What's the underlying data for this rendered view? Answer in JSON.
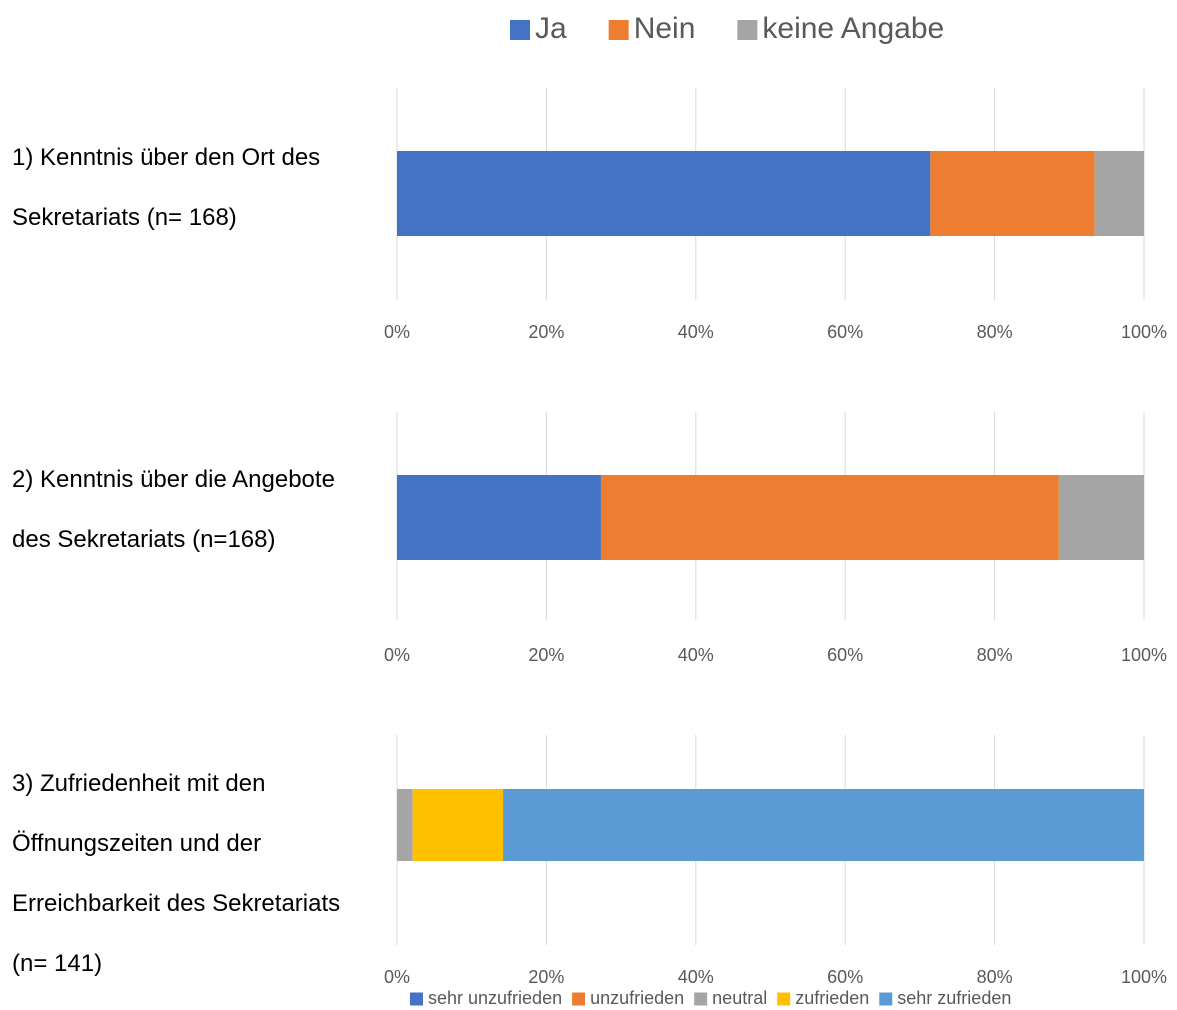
{
  "chart_data": [
    {
      "type": "bar",
      "stacked": true,
      "orientation": "horizontal",
      "categories": [
        "1) Kenntnis über den Ort des Sekretariats (n= 168)",
        "2) Kenntnis über die Angebote des Sekretariats (n=168)"
      ],
      "series": [
        {
          "name": "Ja",
          "color": "#4472c4",
          "values": [
            71.4,
            27.3
          ]
        },
        {
          "name": "Nein",
          "color": "#ed7d31",
          "values": [
            22.0,
            61.3
          ]
        },
        {
          "name": "keine Angabe",
          "color": "#a5a5a5",
          "values": [
            6.6,
            11.4
          ]
        }
      ],
      "xlim": [
        0,
        100
      ],
      "xticks": [
        {
          "value": 0,
          "label": "0%"
        },
        {
          "value": 20,
          "label": "20%"
        },
        {
          "value": 40,
          "label": "40%"
        },
        {
          "value": 60,
          "label": "60%"
        },
        {
          "value": 80,
          "label": "80%"
        },
        {
          "value": 100,
          "label": "100%"
        }
      ],
      "grid": true,
      "legend": "top"
    },
    {
      "type": "bar",
      "stacked": true,
      "orientation": "horizontal",
      "categories": [
        "3) Zufriedenheit mit den Öffnungszeiten und der Erreichbarkeit des Sekretariats (n= 141)"
      ],
      "series": [
        {
          "name": "sehr unzufrieden",
          "color": "#4472c4",
          "values": [
            0
          ]
        },
        {
          "name": "unzufrieden",
          "color": "#ed7d31",
          "values": [
            0
          ]
        },
        {
          "name": "neutral",
          "color": "#a5a5a5",
          "values": [
            2.1
          ]
        },
        {
          "name": "zufrieden",
          "color": "#ffc000",
          "values": [
            12.1
          ]
        },
        {
          "name": "sehr zufrieden",
          "color": "#5b9bd5",
          "values": [
            85.8
          ]
        }
      ],
      "xlim": [
        0,
        100
      ],
      "xticks": [
        {
          "value": 0,
          "label": "0%"
        },
        {
          "value": 20,
          "label": "20%"
        },
        {
          "value": 40,
          "label": "40%"
        },
        {
          "value": 60,
          "label": "60%"
        },
        {
          "value": 80,
          "label": "80%"
        },
        {
          "value": 100,
          "label": "100%"
        }
      ],
      "grid": true,
      "legend": "bottom"
    }
  ]
}
